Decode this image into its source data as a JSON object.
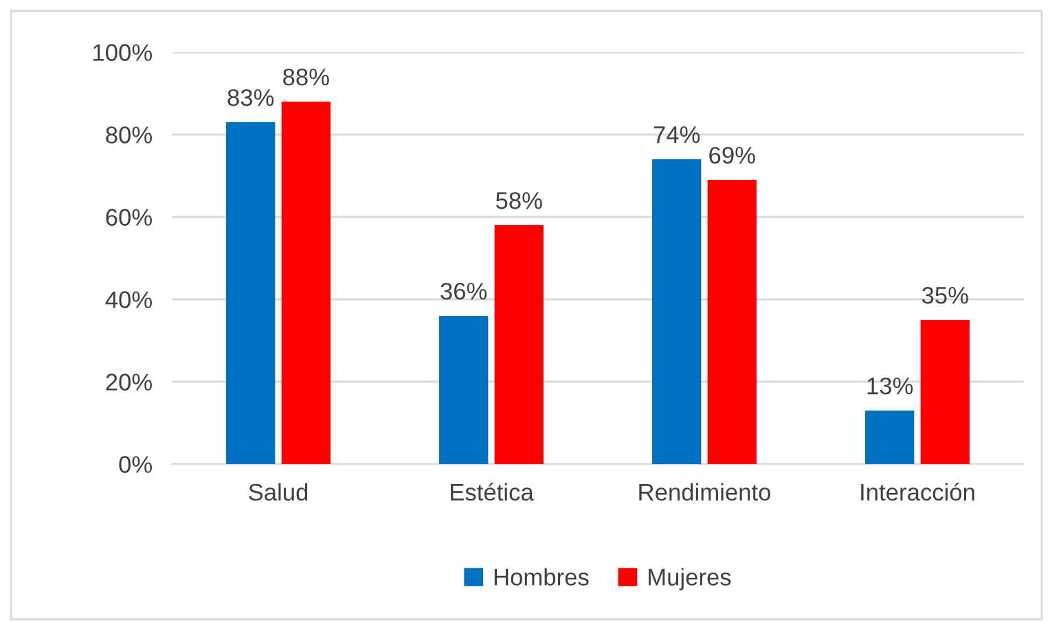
{
  "chart_data": {
    "type": "bar",
    "categories": [
      "Salud",
      "Estética",
      "Rendimiento",
      "Interacción"
    ],
    "series": [
      {
        "name": "Hombres",
        "color": "#0070c0",
        "values": [
          83,
          36,
          74,
          13
        ],
        "value_labels": [
          "83%",
          "36%",
          "74%",
          "13%"
        ]
      },
      {
        "name": "Mujeres",
        "color": "#ff0000",
        "values": [
          88,
          58,
          69,
          35
        ],
        "value_labels": [
          "88%",
          "58%",
          "69%",
          "35%"
        ]
      }
    ],
    "ylim": [
      0,
      100
    ],
    "yticks": [
      {
        "value": 0,
        "label": "0%"
      },
      {
        "value": 20,
        "label": "20%"
      },
      {
        "value": 40,
        "label": "40%"
      },
      {
        "value": 60,
        "label": "60%"
      },
      {
        "value": 80,
        "label": "80%"
      },
      {
        "value": 100,
        "label": "100%"
      }
    ],
    "grid": "y",
    "legend": "bottom"
  }
}
